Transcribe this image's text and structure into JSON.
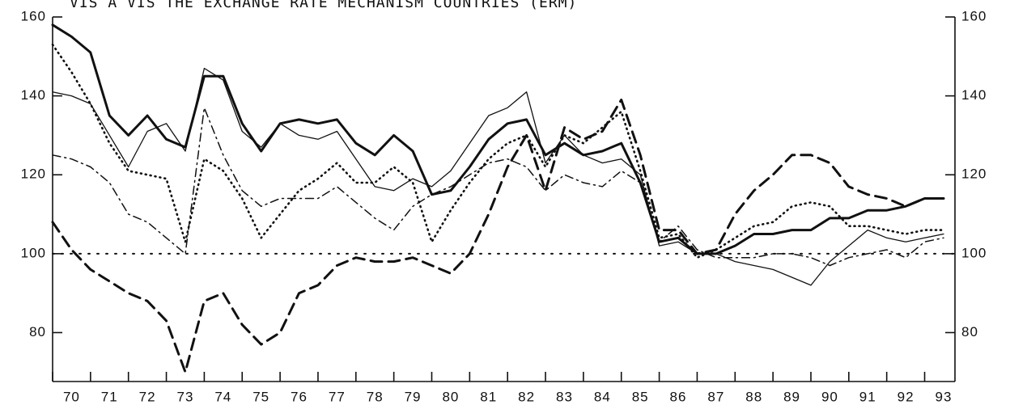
{
  "chart_data": {
    "type": "line",
    "title": "VIS A VIS THE EXCHANGE RATE MECHANISM COUNTRIES (ERM)",
    "x": [
      70,
      70.5,
      71,
      71.5,
      72,
      72.5,
      73,
      73.5,
      74,
      74.5,
      75,
      75.5,
      76,
      76.5,
      77,
      77.5,
      78,
      78.5,
      79,
      79.5,
      80,
      80.5,
      81,
      81.5,
      82,
      82.5,
      83,
      83.5,
      84,
      84.5,
      85,
      85.5,
      86,
      86.5,
      87,
      87.5,
      88,
      88.5,
      89,
      89.5,
      90,
      90.5,
      91,
      91.5,
      92,
      92.5,
      93,
      93.5
    ],
    "series": [
      {
        "color": "#111111",
        "width": 3,
        "dash": "none",
        "values": [
          158,
          155,
          151,
          135,
          130,
          135,
          129,
          127,
          145,
          145,
          133,
          126,
          133,
          134,
          133,
          134,
          128,
          125,
          130,
          126,
          115,
          116,
          122,
          129,
          133,
          134,
          125,
          128,
          125,
          126,
          128,
          118,
          103,
          104,
          100,
          100,
          102,
          105,
          105,
          106,
          106,
          109,
          109,
          111,
          111,
          112,
          114,
          114
        ]
      },
      {
        "color": "#111111",
        "width": 1.3,
        "dash": "none",
        "values": [
          141,
          140,
          138,
          130,
          122,
          131,
          133,
          126,
          147,
          144,
          131,
          127,
          133,
          130,
          129,
          131,
          124,
          117,
          116,
          119,
          117,
          121,
          128,
          135,
          137,
          141,
          123,
          130,
          125,
          123,
          124,
          120,
          102,
          103,
          100,
          100,
          98,
          97,
          96,
          94,
          92,
          98,
          102,
          106,
          104,
          103,
          104,
          105
        ]
      },
      {
        "color": "#111111",
        "width": 2.6,
        "dash": "1,5",
        "values": [
          153,
          146,
          138,
          128,
          121,
          120,
          119,
          103,
          124,
          121,
          114,
          104,
          110,
          116,
          119,
          123,
          118,
          118,
          122,
          118,
          103,
          111,
          118,
          124,
          128,
          130,
          122,
          130,
          128,
          132,
          136,
          121,
          104,
          105,
          99,
          101,
          104,
          107,
          108,
          112,
          113,
          112,
          107,
          107,
          106,
          105,
          106,
          106
        ]
      },
      {
        "color": "#111111",
        "width": 1.5,
        "dash": "10,5,2,5",
        "values": [
          125,
          124,
          122,
          118,
          110,
          108,
          104,
          100,
          137,
          125,
          116,
          112,
          114,
          114,
          114,
          117,
          113,
          109,
          106,
          112,
          115,
          117,
          120,
          123,
          124,
          122,
          116,
          120,
          118,
          117,
          121,
          118,
          103,
          107,
          101,
          99,
          99,
          99,
          100,
          100,
          99,
          97,
          99,
          100,
          101,
          99,
          103,
          104
        ]
      },
      {
        "color": "#111111",
        "width": 3,
        "dash": "14,8",
        "values": [
          108,
          101,
          96,
          93,
          90,
          88,
          83,
          70,
          88,
          90,
          82,
          77,
          80,
          90,
          92,
          97,
          99,
          98,
          98,
          99,
          97,
          95,
          100,
          110,
          122,
          130,
          116,
          132,
          129,
          131,
          139,
          125,
          106,
          106,
          100,
          101,
          110,
          116,
          120,
          125,
          125,
          123,
          117,
          115,
          114,
          112,
          114,
          114
        ]
      }
    ],
    "xlim": [
      70,
      93.8
    ],
    "xticks": [
      70,
      71,
      72,
      73,
      74,
      75,
      76,
      77,
      78,
      79,
      80,
      81,
      82,
      83,
      84,
      85,
      86,
      87,
      88,
      89,
      90,
      91,
      92,
      93
    ],
    "ylim": [
      67.6,
      160
    ],
    "yticks": [
      80,
      100,
      120,
      140,
      160
    ],
    "y2lim": [
      67.6,
      160
    ],
    "y2ticks": [
      80,
      100,
      120,
      140,
      160
    ],
    "reference_line": 100
  }
}
